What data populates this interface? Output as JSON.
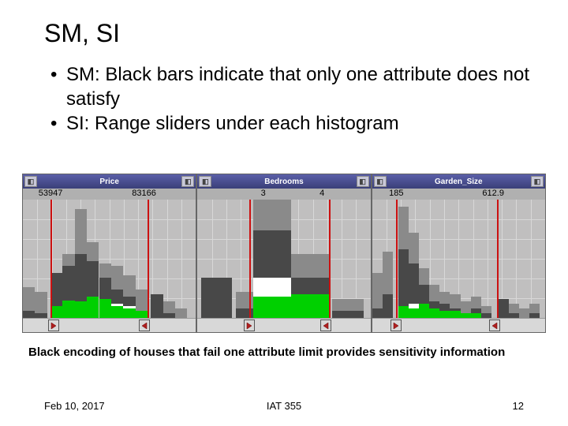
{
  "title": "SM, SI",
  "bullets": [
    "SM: Black bars indicate that only one attribute does not satisfy",
    "SI: Range sliders under each histogram"
  ],
  "caption": "Black encoding of houses that fail one attribute limit provides sensitivity information",
  "footer": {
    "date": "Feb 10, 2017",
    "course": "IAT 355",
    "page": "12"
  },
  "colors": {
    "dark": "#484848",
    "gray": "#8a8a8a",
    "green": "#00d000",
    "white": "#ffffff",
    "red": "#cc1111",
    "chart_bg": "#c0bfbf"
  },
  "grid": {
    "rows": 6,
    "cols": 12
  },
  "panels": [
    {
      "title": "Price",
      "axis": [
        {
          "pos": 16,
          "label": "53947"
        },
        {
          "pos": 70,
          "label": "83166"
        }
      ],
      "red_lines": [
        16,
        72
      ],
      "slider_handles": [
        18,
        70
      ],
      "bars": [
        {
          "x": 0,
          "w": 7,
          "segs": [
            [
              "gray",
              26
            ],
            [
              "dark",
              6
            ]
          ]
        },
        {
          "x": 7,
          "w": 7,
          "segs": [
            [
              "gray",
              22
            ],
            [
              "dark",
              4
            ]
          ]
        },
        {
          "x": 16,
          "w": 7,
          "segs": [
            [
              "gray",
              38
            ],
            [
              "dark",
              38
            ],
            [
              "green",
              10
            ]
          ]
        },
        {
          "x": 23,
          "w": 7,
          "segs": [
            [
              "gray",
              54
            ],
            [
              "dark",
              44
            ],
            [
              "green",
              15
            ]
          ]
        },
        {
          "x": 30,
          "w": 7,
          "segs": [
            [
              "gray",
              92
            ],
            [
              "dark",
              54
            ],
            [
              "green",
              14
            ]
          ]
        },
        {
          "x": 37,
          "w": 7,
          "segs": [
            [
              "gray",
              64
            ],
            [
              "dark",
              48
            ],
            [
              "green",
              18
            ]
          ]
        },
        {
          "x": 44,
          "w": 7,
          "segs": [
            [
              "gray",
              46
            ],
            [
              "dark",
              34
            ],
            [
              "green",
              16
            ]
          ]
        },
        {
          "x": 51,
          "w": 7,
          "segs": [
            [
              "gray",
              44
            ],
            [
              "dark",
              24
            ],
            [
              "white",
              12
            ],
            [
              "green",
              10
            ]
          ]
        },
        {
          "x": 58,
          "w": 7,
          "segs": [
            [
              "gray",
              36
            ],
            [
              "dark",
              18
            ],
            [
              "white",
              10
            ],
            [
              "green",
              8
            ]
          ]
        },
        {
          "x": 65,
          "w": 7,
          "segs": [
            [
              "gray",
              24
            ],
            [
              "dark",
              6
            ],
            [
              "green",
              6
            ]
          ]
        },
        {
          "x": 74,
          "w": 7,
          "segs": [
            [
              "dark",
              20
            ]
          ]
        },
        {
          "x": 81,
          "w": 7,
          "segs": [
            [
              "gray",
              14
            ],
            [
              "dark",
              4
            ]
          ]
        },
        {
          "x": 88,
          "w": 7,
          "segs": [
            [
              "gray",
              8
            ]
          ]
        }
      ]
    },
    {
      "title": "Bedrooms",
      "axis": [
        {
          "pos": 38,
          "label": "3"
        },
        {
          "pos": 72,
          "label": "4"
        }
      ],
      "red_lines": [
        30,
        76
      ],
      "slider_handles": [
        30,
        74
      ],
      "bars": [
        {
          "x": 2,
          "w": 18,
          "segs": [
            [
              "dark",
              34
            ]
          ]
        },
        {
          "x": 22,
          "w": 18,
          "segs": [
            [
              "gray",
              22
            ],
            [
              "dark",
              8
            ]
          ]
        },
        {
          "x": 32,
          "w": 22,
          "segs": [
            [
              "gray",
              100
            ],
            [
              "dark",
              74
            ],
            [
              "white",
              34
            ],
            [
              "green",
              18
            ]
          ]
        },
        {
          "x": 54,
          "w": 22,
          "segs": [
            [
              "gray",
              54
            ],
            [
              "dark",
              34
            ],
            [
              "green",
              20
            ]
          ]
        },
        {
          "x": 78,
          "w": 18,
          "segs": [
            [
              "gray",
              16
            ],
            [
              "dark",
              6
            ]
          ]
        }
      ]
    },
    {
      "title": "Garden_Size",
      "axis": [
        {
          "pos": 14,
          "label": "185"
        },
        {
          "pos": 70,
          "label": "612.9"
        }
      ],
      "red_lines": [
        14,
        72
      ],
      "slider_handles": [
        14,
        71
      ],
      "bars": [
        {
          "x": 0,
          "w": 6,
          "segs": [
            [
              "gray",
              38
            ],
            [
              "dark",
              8
            ]
          ]
        },
        {
          "x": 6,
          "w": 6,
          "segs": [
            [
              "gray",
              56
            ],
            [
              "dark",
              20
            ]
          ]
        },
        {
          "x": 15,
          "w": 6,
          "segs": [
            [
              "gray",
              94
            ],
            [
              "dark",
              58
            ],
            [
              "green",
              10
            ]
          ]
        },
        {
          "x": 21,
          "w": 6,
          "segs": [
            [
              "gray",
              72
            ],
            [
              "dark",
              46
            ],
            [
              "white",
              12
            ],
            [
              "green",
              8
            ]
          ]
        },
        {
          "x": 27,
          "w": 6,
          "segs": [
            [
              "gray",
              42
            ],
            [
              "dark",
              28
            ],
            [
              "green",
              12
            ]
          ]
        },
        {
          "x": 33,
          "w": 6,
          "segs": [
            [
              "gray",
              28
            ],
            [
              "dark",
              14
            ],
            [
              "green",
              8
            ]
          ]
        },
        {
          "x": 39,
          "w": 6,
          "segs": [
            [
              "gray",
              22
            ],
            [
              "dark",
              12
            ],
            [
              "green",
              6
            ]
          ]
        },
        {
          "x": 45,
          "w": 6,
          "segs": [
            [
              "gray",
              20
            ],
            [
              "dark",
              8
            ],
            [
              "green",
              6
            ]
          ]
        },
        {
          "x": 51,
          "w": 6,
          "segs": [
            [
              "gray",
              14
            ],
            [
              "dark",
              4
            ],
            [
              "green",
              4
            ]
          ]
        },
        {
          "x": 57,
          "w": 6,
          "segs": [
            [
              "gray",
              18
            ],
            [
              "dark",
              8
            ],
            [
              "green",
              4
            ]
          ]
        },
        {
          "x": 63,
          "w": 6,
          "segs": [
            [
              "gray",
              10
            ],
            [
              "dark",
              4
            ]
          ]
        },
        {
          "x": 73,
          "w": 6,
          "segs": [
            [
              "dark",
              16
            ]
          ]
        },
        {
          "x": 79,
          "w": 6,
          "segs": [
            [
              "gray",
              12
            ],
            [
              "dark",
              4
            ]
          ]
        },
        {
          "x": 85,
          "w": 6,
          "segs": [
            [
              "gray",
              8
            ]
          ]
        },
        {
          "x": 91,
          "w": 6,
          "segs": [
            [
              "gray",
              12
            ],
            [
              "dark",
              4
            ]
          ]
        }
      ]
    }
  ]
}
